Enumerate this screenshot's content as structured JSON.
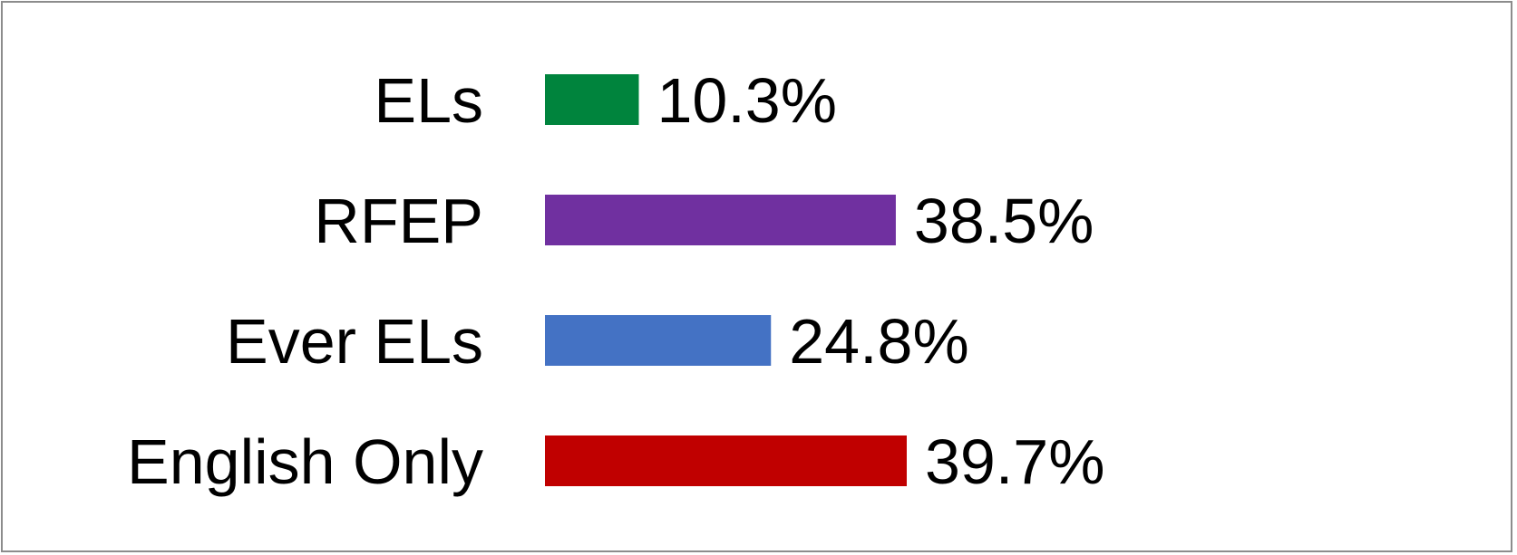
{
  "chart_data": {
    "type": "bar",
    "orientation": "horizontal",
    "categories": [
      "ELs",
      "RFEP",
      "Ever ELs",
      "English Only"
    ],
    "values": [
      10.3,
      38.5,
      24.8,
      39.7
    ],
    "value_labels": [
      "10.3%",
      "38.5%",
      "24.8%",
      "39.7%"
    ],
    "colors": [
      "#00843D",
      "#7030A0",
      "#4472C4",
      "#C00000"
    ],
    "xlim": [
      0,
      100
    ],
    "title": "",
    "xlabel": "",
    "ylabel": "",
    "grid": false,
    "legend": "none",
    "axes_visible": false
  }
}
